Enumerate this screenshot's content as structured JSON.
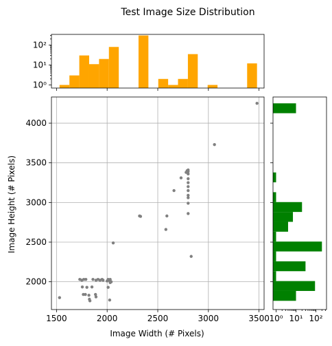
{
  "chart_data": {
    "type": "scatter",
    "title": "Test Image Size Distribution",
    "xlabel": "Image Width (# Pixels)",
    "ylabel": "Image Height (# Pixels)",
    "grid": true,
    "colors": {
      "scatter": "#808080",
      "top_hist": "#ffa500",
      "right_hist": "#008000"
    },
    "scatter": {
      "xlim": [
        1450,
        3550
      ],
      "ylim": [
        1650,
        4330
      ],
      "xticks": [
        1500,
        2000,
        2500,
        3000,
        3500
      ],
      "yticks": [
        2000,
        2500,
        3000,
        3500,
        4000
      ],
      "x_tick_labels": [
        "1500",
        "2000",
        "2500",
        "3000",
        "3500"
      ],
      "y_tick_labels": [
        "2000",
        "2500",
        "3000",
        "3500",
        "4000"
      ],
      "points": [
        [
          1530,
          1800
        ],
        [
          1730,
          2030
        ],
        [
          1750,
          2020
        ],
        [
          1770,
          2030
        ],
        [
          1790,
          2030
        ],
        [
          1755,
          1935
        ],
        [
          1800,
          1930
        ],
        [
          1850,
          1935
        ],
        [
          1765,
          1840
        ],
        [
          1785,
          1840
        ],
        [
          1820,
          1830
        ],
        [
          1825,
          1780
        ],
        [
          1830,
          1760
        ],
        [
          1860,
          2030
        ],
        [
          1885,
          1840
        ],
        [
          1890,
          1810
        ],
        [
          1890,
          2020
        ],
        [
          1910,
          2030
        ],
        [
          1930,
          2020
        ],
        [
          1950,
          2030
        ],
        [
          1960,
          2020
        ],
        [
          2000,
          2010
        ],
        [
          2010,
          2030
        ],
        [
          2020,
          2020
        ],
        [
          2030,
          2010
        ],
        [
          2030,
          2030
        ],
        [
          2030,
          1990
        ],
        [
          2040,
          2000
        ],
        [
          2010,
          1930
        ],
        [
          2025,
          1770
        ],
        [
          2060,
          2490
        ],
        [
          2320,
          2830
        ],
        [
          2330,
          2825
        ],
        [
          2580,
          2660
        ],
        [
          2590,
          2830
        ],
        [
          2660,
          3150
        ],
        [
          2730,
          3310
        ],
        [
          2780,
          3380
        ],
        [
          2790,
          3400
        ],
        [
          2800,
          3390
        ],
        [
          2800,
          3410
        ],
        [
          2800,
          3360
        ],
        [
          2800,
          3300
        ],
        [
          2800,
          3250
        ],
        [
          2800,
          3200
        ],
        [
          2800,
          3150
        ],
        [
          2800,
          3090
        ],
        [
          2800,
          3060
        ],
        [
          2800,
          2990
        ],
        [
          2800,
          2860
        ],
        [
          2830,
          2320
        ],
        [
          3060,
          3730
        ],
        [
          3480,
          4250
        ]
      ]
    },
    "top_hist": {
      "scale": "log",
      "ylim": [
        0.7,
        340
      ],
      "yticks": [
        1,
        10,
        100
      ],
      "y_tick_labels": [
        "10⁰",
        "10¹",
        "10²"
      ],
      "bin_start": 1530,
      "bin_width": 97.5,
      "counts": [
        1,
        3,
        30,
        11,
        20,
        80,
        0,
        0,
        300,
        0,
        2,
        1,
        2,
        35,
        0,
        1,
        0,
        0,
        0,
        12
      ]
    },
    "right_hist": {
      "scale": "log",
      "xlim": [
        0.7,
        340
      ],
      "xticks": [
        1,
        10,
        100
      ],
      "x_tick_labels": [
        "10⁰",
        "10¹",
        "10²"
      ],
      "bin_start": 1760,
      "bin_width": 124.5,
      "counts": [
        10,
        90,
        1,
        30,
        1,
        200,
        1,
        4,
        7,
        20,
        1,
        0,
        1,
        0,
        0,
        0,
        0,
        0,
        0,
        10
      ]
    }
  }
}
